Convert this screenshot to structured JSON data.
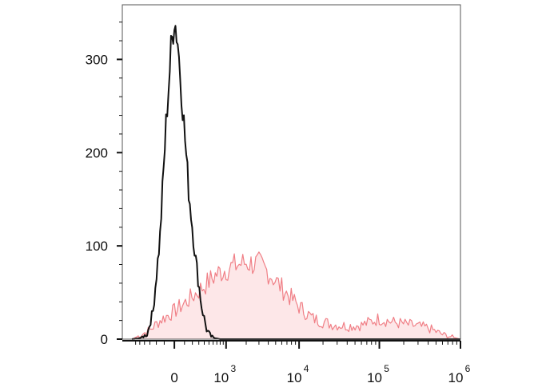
{
  "chart_data": {
    "type": "area",
    "title": "",
    "xlabel": "",
    "ylabel": "",
    "x_scale": "biexponential",
    "xlim": [
      -700,
      1000000
    ],
    "ylim": [
      0,
      350
    ],
    "grid": false,
    "legend": "none",
    "y_ticks": [
      {
        "value": 0,
        "label": "0"
      },
      {
        "value": 100,
        "label": "100"
      },
      {
        "value": 200,
        "label": "200"
      },
      {
        "value": 300,
        "label": "300"
      }
    ],
    "x_ticks": [
      {
        "value": 0,
        "base": "0",
        "exp": ""
      },
      {
        "value": 1000,
        "base": "10",
        "exp": "3"
      },
      {
        "value": 10000,
        "base": "10",
        "exp": "4"
      },
      {
        "value": 100000,
        "base": "10",
        "exp": "5"
      },
      {
        "value": 1000000,
        "base": "10",
        "exp": "6"
      }
    ],
    "series": [
      {
        "color": "#f07f86",
        "fill": "#fde7e8",
        "x": [
          -700,
          -500,
          -300,
          -150,
          0,
          150,
          300,
          500,
          700,
          1000,
          1500,
          2000,
          3000,
          4000,
          6000,
          10000,
          15000,
          25000,
          40000,
          60000,
          100000,
          150000,
          250000,
          400000,
          600000,
          1000000
        ],
        "values": [
          0,
          4,
          10,
          20,
          30,
          42,
          52,
          62,
          70,
          75,
          80,
          82,
          80,
          72,
          55,
          35,
          22,
          16,
          14,
          15,
          22,
          18,
          15,
          12,
          5,
          0
        ]
      },
      {
        "color": "#111111",
        "x": [
          -700,
          -500,
          -350,
          -250,
          -150,
          -80,
          -30,
          0,
          30,
          80,
          150,
          250,
          350,
          450,
          550,
          650,
          800,
          1000,
          1500,
          2000,
          3000,
          5000,
          10000,
          1000000
        ],
        "values": [
          0,
          1,
          5,
          30,
          110,
          230,
          310,
          345,
          320,
          250,
          160,
          85,
          35,
          10,
          3,
          1,
          0,
          0,
          0,
          0,
          0,
          0,
          0,
          0
        ]
      }
    ]
  }
}
